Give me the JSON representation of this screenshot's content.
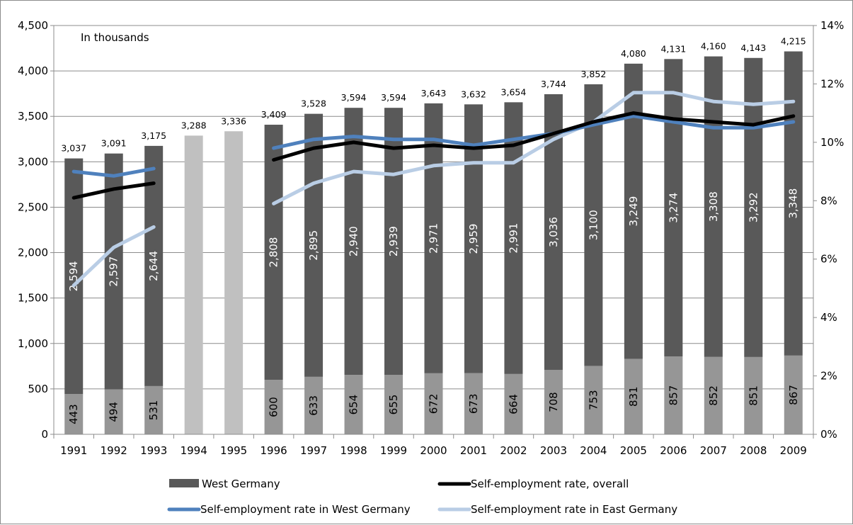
{
  "chart_data": {
    "type": "bar",
    "note": "In thousands",
    "categories": [
      "1991",
      "1992",
      "1993",
      "1994",
      "1995",
      "1996",
      "1997",
      "1998",
      "1999",
      "2000",
      "2001",
      "2002",
      "2003",
      "2004",
      "2005",
      "2006",
      "2007",
      "2008",
      "2009"
    ],
    "totals": [
      3037,
      3091,
      3175,
      3288,
      3336,
      3409,
      3528,
      3594,
      3594,
      3643,
      3632,
      3654,
      3744,
      3852,
      4080,
      4131,
      4160,
      4143,
      4215
    ],
    "totals_labels": [
      "3,037",
      "3,091",
      "3,175",
      "3,288",
      "3,336",
      "3,409",
      "3,528",
      "3,594",
      "3,594",
      "3,643",
      "3,632",
      "3,654",
      "3,744",
      "3,852",
      "4,080",
      "4,131",
      "4,160",
      "4,143",
      "4,215"
    ],
    "series": [
      {
        "name": "West Germany",
        "color": "#595959",
        "values": [
          2594,
          2597,
          2644,
          null,
          null,
          2808,
          2895,
          2940,
          2939,
          2971,
          2959,
          2991,
          3036,
          3100,
          3249,
          3274,
          3308,
          3292,
          3348
        ],
        "labels": [
          "2,594",
          "2,597",
          "2,644",
          "",
          "",
          "2,808",
          "2,895",
          "2,940",
          "2,939",
          "2,971",
          "2,959",
          "2,991",
          "3,036",
          "3,100",
          "3,249",
          "3,274",
          "3,308",
          "3,292",
          "3,348"
        ]
      },
      {
        "color": "#969696",
        "values": [
          443,
          494,
          531,
          null,
          null,
          600,
          633,
          654,
          655,
          672,
          673,
          664,
          708,
          753,
          831,
          857,
          852,
          851,
          867
        ],
        "labels": [
          "443",
          "494",
          "531",
          "",
          "",
          "600",
          "633",
          "654",
          "655",
          "672",
          "673",
          "664",
          "708",
          "753",
          "831",
          "857",
          "852",
          "851",
          "867"
        ]
      },
      {
        "color": "#c0c0c0",
        "values": [
          null,
          null,
          null,
          3288,
          3336,
          null,
          null,
          null,
          null,
          null,
          null,
          null,
          null,
          null,
          null,
          null,
          null,
          null,
          null
        ]
      }
    ],
    "lines": [
      {
        "name": "Self-employment rate, overall",
        "color": "#000000",
        "values": [
          8.1,
          8.4,
          8.6,
          null,
          null,
          9.4,
          9.8,
          10.0,
          9.8,
          9.9,
          9.8,
          9.9,
          10.3,
          10.7,
          11.0,
          10.8,
          10.7,
          10.6,
          10.9
        ]
      },
      {
        "name": "Self-employment rate in West Germany",
        "color": "#4f81bd",
        "values": [
          9.0,
          8.85,
          9.1,
          null,
          null,
          9.8,
          10.1,
          10.2,
          10.1,
          10.1,
          9.9,
          10.1,
          10.3,
          10.6,
          10.9,
          10.7,
          10.5,
          10.5,
          10.7
        ]
      },
      {
        "name": "Self-employment rate in East Germany",
        "color": "#b9cde5",
        "values": [
          5.1,
          6.4,
          7.1,
          null,
          null,
          7.9,
          8.6,
          9.0,
          8.9,
          9.2,
          9.3,
          9.3,
          10.1,
          10.7,
          11.7,
          11.7,
          11.4,
          11.3,
          11.4
        ]
      }
    ],
    "y_left": {
      "min": 0,
      "max": 4500,
      "ticks": [
        "0",
        "500",
        "1,000",
        "1,500",
        "2,000",
        "2,500",
        "3,000",
        "3,500",
        "4,000",
        "4,500"
      ]
    },
    "y_right": {
      "min": 0,
      "max": 14,
      "ticks": [
        "0%",
        "2%",
        "4%",
        "6%",
        "8%",
        "10%",
        "12%",
        "14%"
      ]
    },
    "grid": true,
    "legend": [
      {
        "label": "West Germany",
        "kind": "bar",
        "color": "#595959"
      },
      {
        "label": "Self-employment rate, overall",
        "kind": "line",
        "color": "#000000"
      },
      {
        "label": "Self-employment rate in West Germany",
        "kind": "line",
        "color": "#4f81bd"
      },
      {
        "label": "Self-employment rate in East Germany",
        "kind": "line",
        "color": "#b9cde5"
      }
    ],
    "legend_position": "bottom"
  }
}
